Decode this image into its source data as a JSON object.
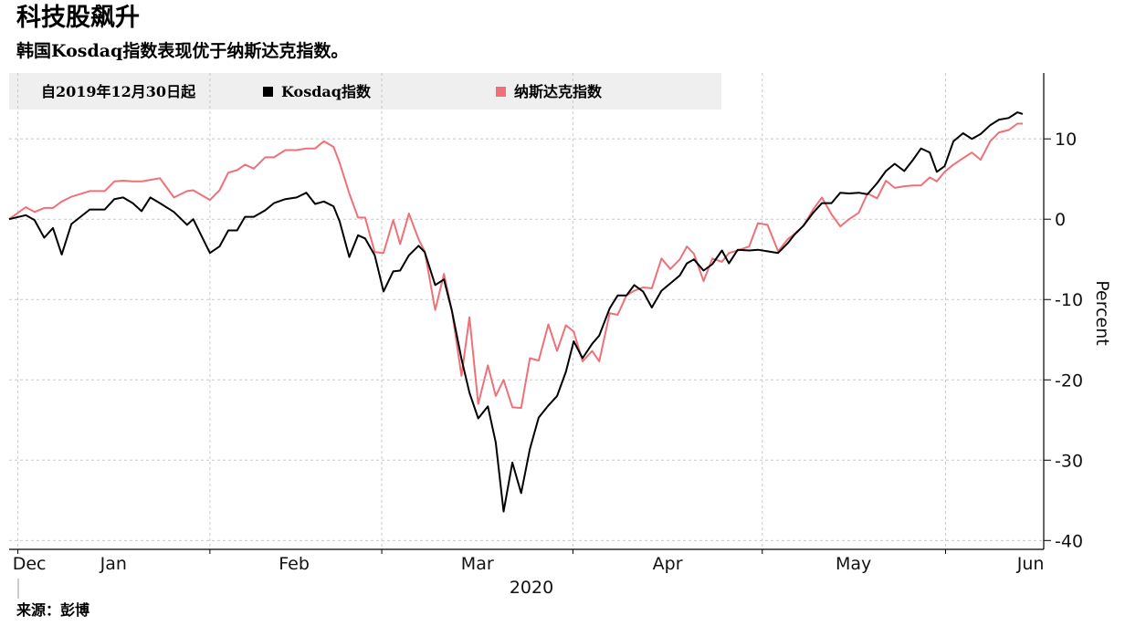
{
  "chart_data": {
    "type": "line",
    "title": "科技股飙升",
    "subtitle": "韩国Kosdaq指数表现优于纳斯达克指数。",
    "legend_note": "自2019年12月30日起",
    "source": "来源：彭博",
    "x_label": "2020",
    "y_label": "Percent",
    "xlim": [
      0,
      118
    ],
    "ylim": [
      -41.1,
      18.2
    ],
    "yticks": [
      -40,
      -30,
      -20,
      -10,
      0,
      10
    ],
    "xticks": [
      {
        "value": 2.3,
        "label": "Dec"
      },
      {
        "value": 11.9,
        "label": "Jan"
      },
      {
        "value": 32.5,
        "label": "Feb"
      },
      {
        "value": 53.4,
        "label": "Mar"
      },
      {
        "value": 75.1,
        "label": "Apr"
      },
      {
        "value": 96.3,
        "label": "May"
      },
      {
        "value": 116.5,
        "label": "Jun"
      }
    ],
    "x_boundaries": [
      1.0,
      22.9,
      42.5,
      64.3,
      85.9,
      106.8
    ],
    "grid": true,
    "x": [
      0,
      1.9,
      2.9,
      4.0,
      5.0,
      6.0,
      7.1,
      9.2,
      10.9,
      12.0,
      13.0,
      14.1,
      15.1,
      16.1,
      17.2,
      18.8,
      20.3,
      21.0,
      22.9,
      24.0,
      25.0,
      26.0,
      26.9,
      27.9,
      29.2,
      30.2,
      31.5,
      32.8,
      33.9,
      34.9,
      35.9,
      37.0,
      37.7,
      38.8,
      39.8,
      40.6,
      41.7,
      42.7,
      43.8,
      44.6,
      45.6,
      46.7,
      47.4,
      48.6,
      49.6,
      50.5,
      51.6,
      52.5,
      53.5,
      54.6,
      55.5,
      56.4,
      57.4,
      58.4,
      59.4,
      60.4,
      61.5,
      62.5,
      63.5,
      64.4,
      65.4,
      66.5,
      67.3,
      68.5,
      69.4,
      70.4,
      71.3,
      72.3,
      73.3,
      74.4,
      75.4,
      76.5,
      77.3,
      78.1,
      79.2,
      80.2,
      81.3,
      82.1,
      83.1,
      84.4,
      85.4,
      86.5,
      87.7,
      88.8,
      89.6,
      90.6,
      91.7,
      92.7,
      93.8,
      94.8,
      95.8,
      96.9,
      97.9,
      99.0,
      100.0,
      101.0,
      102.1,
      103.1,
      104.0,
      105.0,
      105.8,
      106.7,
      107.7,
      108.8,
      109.8,
      110.8,
      111.9,
      112.9,
      114.0,
      115.0,
      115.6
    ],
    "series": [
      {
        "name": "Kosdaq指数",
        "color": "#000000",
        "values": [
          0,
          0.5,
          -0.1,
          -2.3,
          -1.1,
          -4.4,
          -0.6,
          1.2,
          1.2,
          2.5,
          2.7,
          2.0,
          1.0,
          2.7,
          2.0,
          0.9,
          -0.7,
          0,
          -4.2,
          -3.4,
          -1.4,
          -1.4,
          0.3,
          0.3,
          1.1,
          2.0,
          2.5,
          2.7,
          3.3,
          1.9,
          2.2,
          1.6,
          -0.3,
          -4.7,
          -2.0,
          -2.4,
          -4.5,
          -9.0,
          -6.5,
          -6.4,
          -4.5,
          -3.3,
          -4.1,
          -8.2,
          -7.5,
          -11.4,
          -17.4,
          -21.6,
          -24.8,
          -23.3,
          -27.8,
          -36.4,
          -30.3,
          -34.1,
          -28.6,
          -24.7,
          -23.2,
          -22.0,
          -19.0,
          -15.2,
          -17.3,
          -15.5,
          -14.5,
          -11.1,
          -9.5,
          -9.5,
          -8.2,
          -9.0,
          -11.0,
          -8.9,
          -8.0,
          -7.0,
          -5.5,
          -5.0,
          -6.4,
          -5.6,
          -3.9,
          -5.5,
          -3.8,
          -3.9,
          -3.8,
          -4.0,
          -4.2,
          -3.0,
          -1.9,
          -0.8,
          0.8,
          2.0,
          2.0,
          3.3,
          3.2,
          3.3,
          3.1,
          4.5,
          6.0,
          6.9,
          6.0,
          7.4,
          8.8,
          8.3,
          5.9,
          6.6,
          9.7,
          10.7,
          10.0,
          10.6,
          11.7,
          12.4,
          12.6,
          13.3,
          13.1
        ]
      },
      {
        "name": "纳斯达克指数",
        "color": "#f07078",
        "values": [
          0,
          1.5,
          0.9,
          1.4,
          1.4,
          2.2,
          2.8,
          3.5,
          3.5,
          4.7,
          4.8,
          4.7,
          4.7,
          4.9,
          5.1,
          2.7,
          3.5,
          3.6,
          2.4,
          3.6,
          5.8,
          6.1,
          6.8,
          6.3,
          7.7,
          7.7,
          8.6,
          8.6,
          8.8,
          8.8,
          9.7,
          9.0,
          7.0,
          3.2,
          0.2,
          0.2,
          -4.1,
          -4.2,
          -0.1,
          -3.1,
          0.7,
          -2.5,
          -4.0,
          -11.3,
          -6.8,
          -11.4,
          -19.5,
          -12.2,
          -23.0,
          -18.2,
          -22.0,
          -20.0,
          -23.4,
          -23.5,
          -17.3,
          -17.6,
          -13.1,
          -16.4,
          -13.2,
          -14.0,
          -17.7,
          -16.4,
          -17.7,
          -11.7,
          -11.9,
          -9.5,
          -8.9,
          -8.5,
          -8.6,
          -4.9,
          -6.2,
          -5.0,
          -3.4,
          -4.3,
          -7.7,
          -4.9,
          -5.3,
          -4.2,
          -3.9,
          -3.4,
          -0.5,
          -0.7,
          -4.0,
          -2.5,
          -1.8,
          -0.8,
          1.2,
          2.7,
          0.6,
          -0.9,
          0,
          0.8,
          3.2,
          2.6,
          4.8,
          3.9,
          4.1,
          4.2,
          4.2,
          5.2,
          4.7,
          5.9,
          6.8,
          7.6,
          8.3,
          7.4,
          9.7,
          10.8,
          11.1,
          11.9,
          11.9
        ]
      }
    ]
  }
}
